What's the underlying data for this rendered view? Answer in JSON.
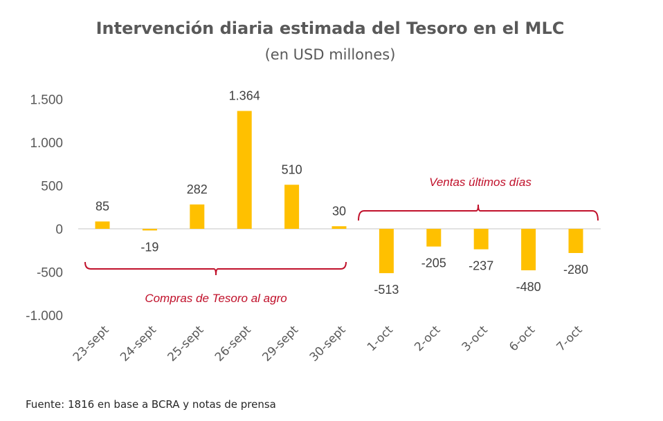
{
  "chart_data": {
    "type": "bar",
    "title": "Intervención diaria estimada del Tesoro en el MLC",
    "subtitle": "(en USD millones)",
    "xlabel": "",
    "ylabel": "",
    "categories": [
      "23-sept",
      "24-sept",
      "25-sept",
      "26-sept",
      "29-sept",
      "30-sept",
      "1-oct",
      "2-oct",
      "3-oct",
      "6-oct",
      "7-oct"
    ],
    "values": [
      85,
      -19,
      282,
      1364,
      510,
      30,
      -513,
      -205,
      -237,
      -480,
      -280
    ],
    "data_labels": [
      "85",
      "-19",
      "282",
      "1.364",
      "510",
      "30",
      "-513",
      "-205",
      "-237",
      "-480",
      "-280"
    ],
    "ylim": [
      -1000,
      1500
    ],
    "yticks": [
      1500,
      1000,
      500,
      0,
      -500,
      -1000
    ],
    "ytick_labels": [
      "1.500",
      "1.000",
      "500",
      "0",
      "-500",
      "-1.000"
    ],
    "grid": false,
    "legend": null,
    "bar_color": "#FFC000",
    "annotations": [
      {
        "text": "Compras de Tesoro al agro",
        "span": [
          "23-sept",
          "30-sept"
        ],
        "placement": "below-axis",
        "color": "#C0102A"
      },
      {
        "text": "Ventas últimos días",
        "span": [
          "1-oct",
          "7-oct"
        ],
        "placement": "above-axis",
        "color": "#C0102A"
      }
    ],
    "source": "Fuente: 1816 en base a BCRA y notas de prensa"
  }
}
